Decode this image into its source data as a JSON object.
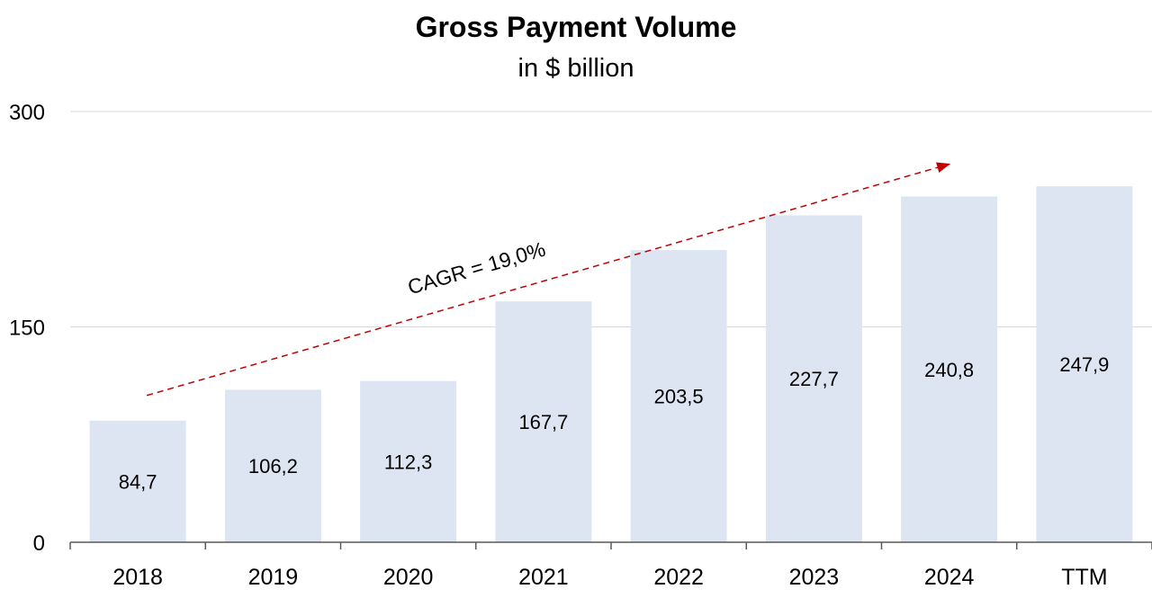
{
  "chart_data": {
    "type": "bar",
    "title": "Gross Payment Volume",
    "subtitle": "in $ billion",
    "categories": [
      "2018",
      "2019",
      "2020",
      "2021",
      "2022",
      "2023",
      "2024",
      "TTM"
    ],
    "values": [
      84.7,
      106.2,
      112.3,
      167.7,
      203.5,
      227.7,
      240.8,
      247.9
    ],
    "data_labels": [
      "84,7",
      "106,2",
      "112,3",
      "167,7",
      "203,5",
      "227,7",
      "240,8",
      "247,9"
    ],
    "ylim": [
      0,
      300
    ],
    "yticks": [
      0,
      150,
      300
    ],
    "ytick_labels": [
      "0",
      "150",
      "300"
    ],
    "xlabel": "",
    "ylabel": "",
    "grid": true,
    "annotation": {
      "text": "CAGR = 19,0%",
      "from_category": "2018",
      "to_category": "2024"
    },
    "colors": {
      "bar": "#dde5f3",
      "grid": "#d9d9d9",
      "axis": "#595959",
      "arrow": "#c00000"
    }
  }
}
